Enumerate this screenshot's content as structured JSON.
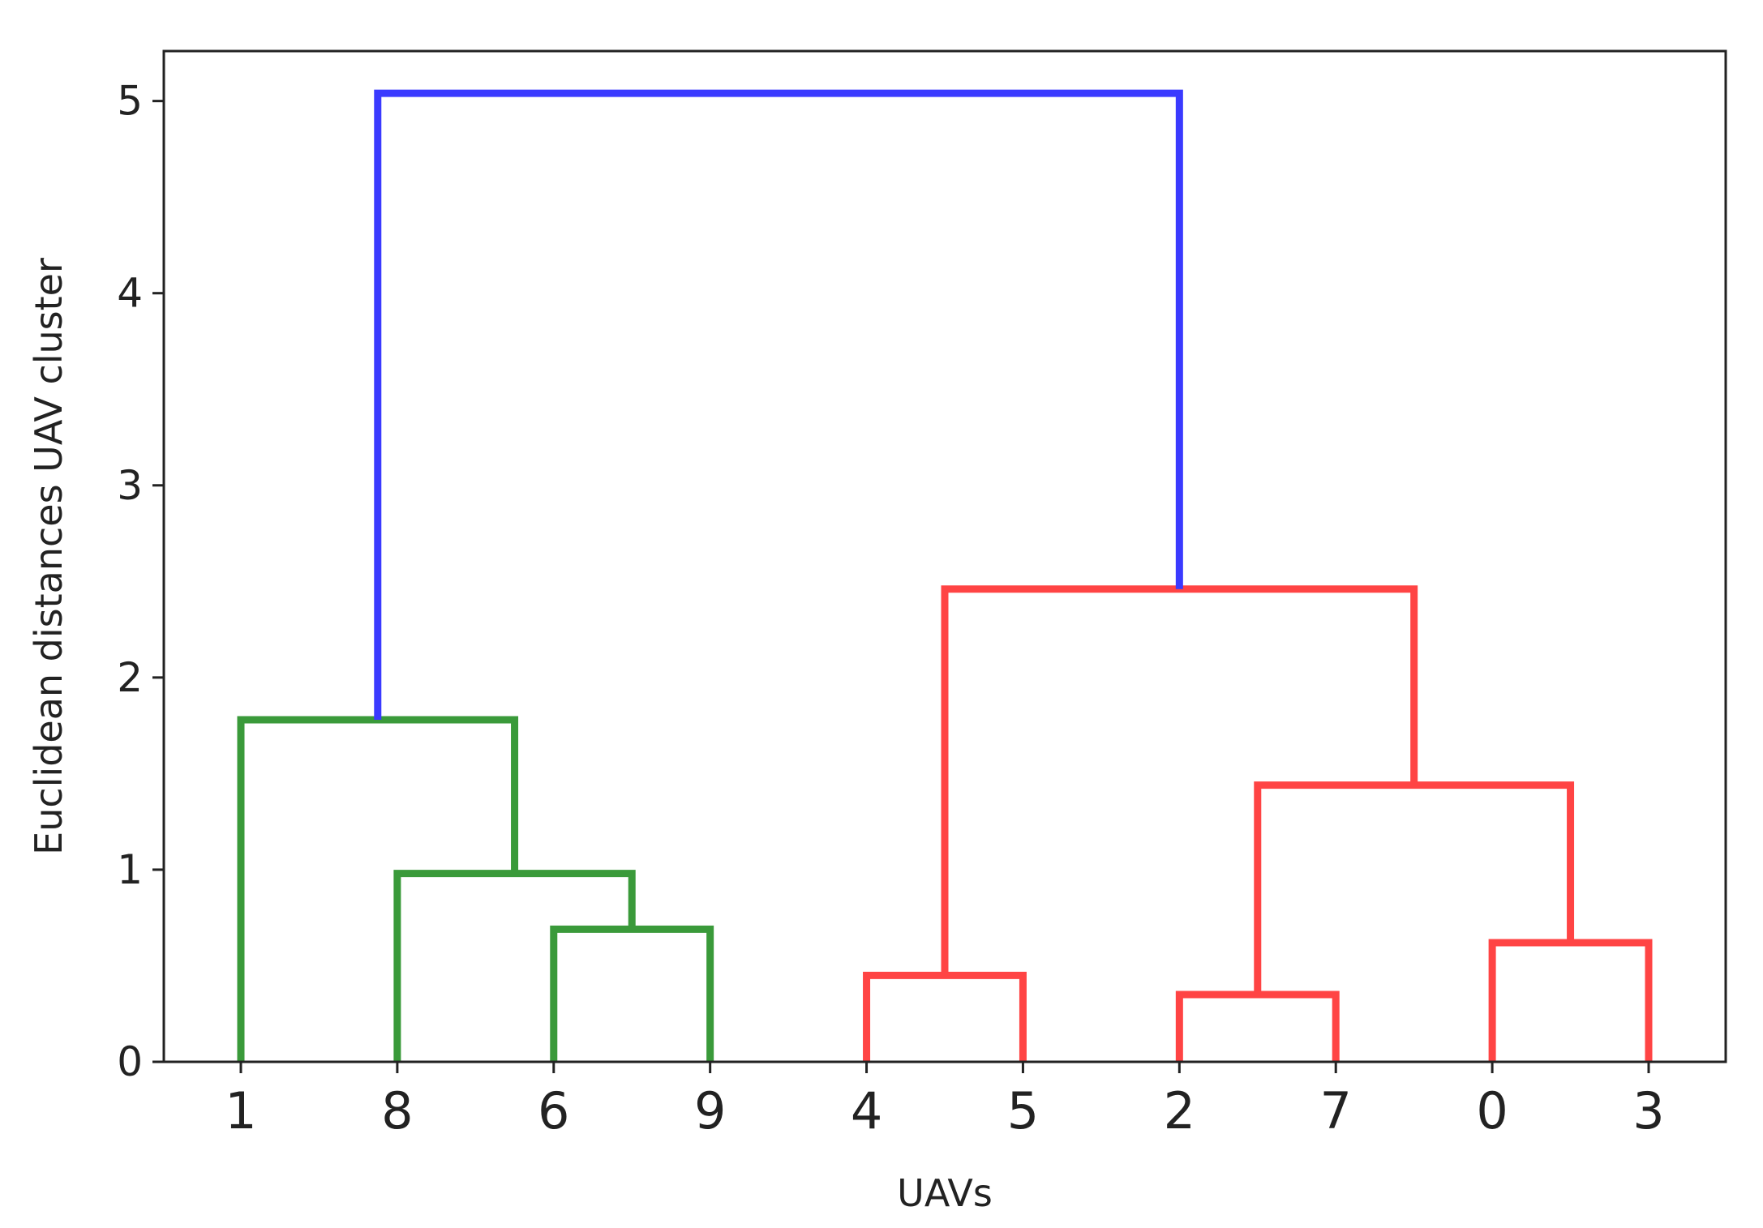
{
  "chart_data": {
    "type": "dendrogram",
    "title": "",
    "xlabel": "UAVs",
    "ylabel": "Euclidean distances UAV cluster",
    "ylim": [
      0,
      5.26
    ],
    "yticks": [
      0,
      1,
      2,
      3,
      4,
      5
    ],
    "grid": false,
    "leaf_order": [
      "1",
      "8",
      "6",
      "9",
      "4",
      "5",
      "2",
      "7",
      "0",
      "3"
    ],
    "merges": [
      {
        "left": "6",
        "right": "9",
        "height": 0.69,
        "color": "#3a9a3a"
      },
      {
        "left": "8",
        "right": "6+9",
        "height": 0.98,
        "color": "#3a9a3a"
      },
      {
        "left": "1",
        "right": "8+6+9",
        "height": 1.78,
        "color": "#3a9a3a"
      },
      {
        "left": "4",
        "right": "5",
        "height": 0.45,
        "color": "#ff4444"
      },
      {
        "left": "2",
        "right": "7",
        "height": 0.35,
        "color": "#ff4444"
      },
      {
        "left": "0",
        "right": "3",
        "height": 0.62,
        "color": "#ff4444"
      },
      {
        "left": "2+7",
        "right": "0+3",
        "height": 1.44,
        "color": "#ff4444"
      },
      {
        "left": "4+5",
        "right": "2+7+0+3",
        "height": 2.46,
        "color": "#ff4444"
      },
      {
        "left": "1+8+6+9",
        "right": "4+5+2+7+0+3",
        "height": 5.04,
        "color": "#3a3aff"
      }
    ],
    "colors": {
      "green": "#3a9a3a",
      "red": "#ff4444",
      "blue": "#3a3aff",
      "axis": "#222222"
    }
  }
}
